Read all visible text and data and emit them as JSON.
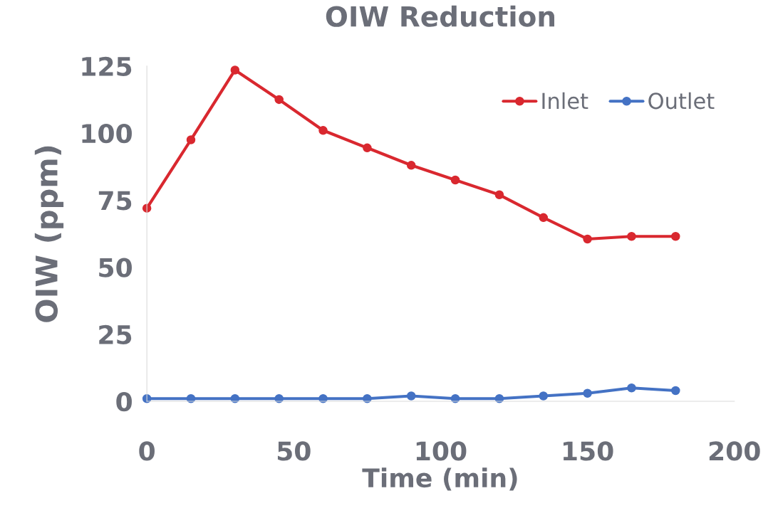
{
  "chart_data": {
    "type": "line",
    "title": "OIW Reduction",
    "xlabel": "Time (min)",
    "ylabel": "OIW (ppm)",
    "x": [
      0,
      15,
      30,
      45,
      60,
      75,
      90,
      105,
      120,
      135,
      150,
      165,
      180
    ],
    "series": [
      {
        "name": "Inlet",
        "color": "#d9282f",
        "values": [
          72,
          97.5,
          123.5,
          112.5,
          101,
          94.5,
          88,
          82.5,
          77,
          68.5,
          60.5,
          61.5,
          61.5
        ]
      },
      {
        "name": "Outlet",
        "color": "#4472c4",
        "values": [
          1,
          1,
          1,
          1,
          1,
          1,
          2,
          1,
          1,
          2,
          3,
          5,
          4
        ]
      }
    ],
    "xlim": [
      0,
      200
    ],
    "xticks": [
      0,
      50,
      100,
      150,
      200
    ],
    "ylim": [
      0,
      125
    ],
    "yticks": [
      0,
      25,
      50,
      75,
      100,
      125
    ],
    "grid": false,
    "legend": "top right",
    "marker": "circle",
    "line_style": "solid"
  }
}
